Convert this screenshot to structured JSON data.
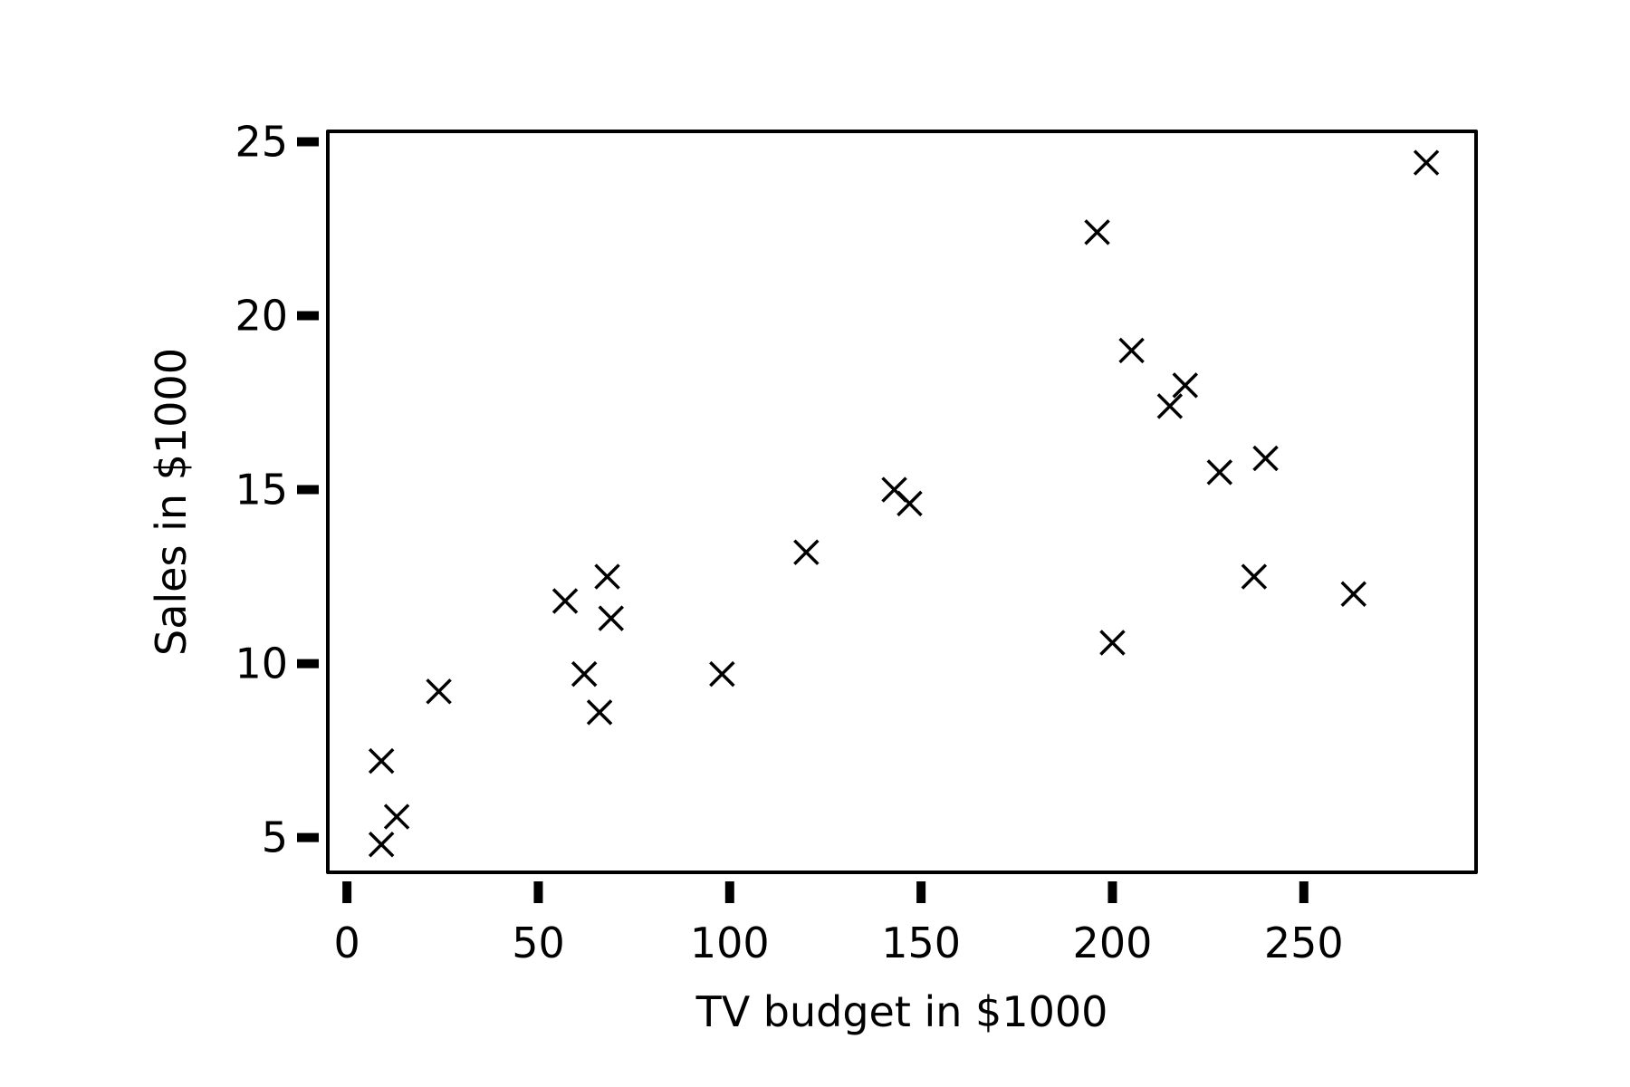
{
  "chart_data": {
    "type": "scatter",
    "title": "",
    "xlabel": "TV budget in $1000",
    "ylabel": "Sales in $1000",
    "xlim": [
      -5,
      295
    ],
    "ylim": [
      4,
      25.3
    ],
    "xticks": [
      0,
      50,
      100,
      150,
      200,
      250
    ],
    "yticks": [
      5,
      10,
      15,
      20,
      25
    ],
    "xtick_labels": [
      "0",
      "50",
      "100",
      "150",
      "200",
      "250"
    ],
    "ytick_labels": [
      "5",
      "10",
      "15",
      "20",
      "25"
    ],
    "grid": false,
    "legend": false,
    "marker": "x",
    "color": "#000000",
    "series": [
      {
        "points": [
          {
            "x": 9,
            "y": 4.8
          },
          {
            "x": 9,
            "y": 7.2
          },
          {
            "x": 13,
            "y": 5.6
          },
          {
            "x": 24,
            "y": 9.2
          },
          {
            "x": 57,
            "y": 11.8
          },
          {
            "x": 62,
            "y": 9.7
          },
          {
            "x": 66,
            "y": 8.6
          },
          {
            "x": 68,
            "y": 12.5
          },
          {
            "x": 69,
            "y": 11.3
          },
          {
            "x": 98,
            "y": 9.7
          },
          {
            "x": 120,
            "y": 13.2
          },
          {
            "x": 143,
            "y": 15.0
          },
          {
            "x": 147,
            "y": 14.6
          },
          {
            "x": 196,
            "y": 22.4
          },
          {
            "x": 200,
            "y": 10.6
          },
          {
            "x": 205,
            "y": 19.0
          },
          {
            "x": 215,
            "y": 17.4
          },
          {
            "x": 219,
            "y": 18.0
          },
          {
            "x": 228,
            "y": 15.5
          },
          {
            "x": 237,
            "y": 12.5
          },
          {
            "x": 240,
            "y": 15.9
          },
          {
            "x": 263,
            "y": 12.0
          },
          {
            "x": 282,
            "y": 24.4
          }
        ]
      }
    ]
  }
}
